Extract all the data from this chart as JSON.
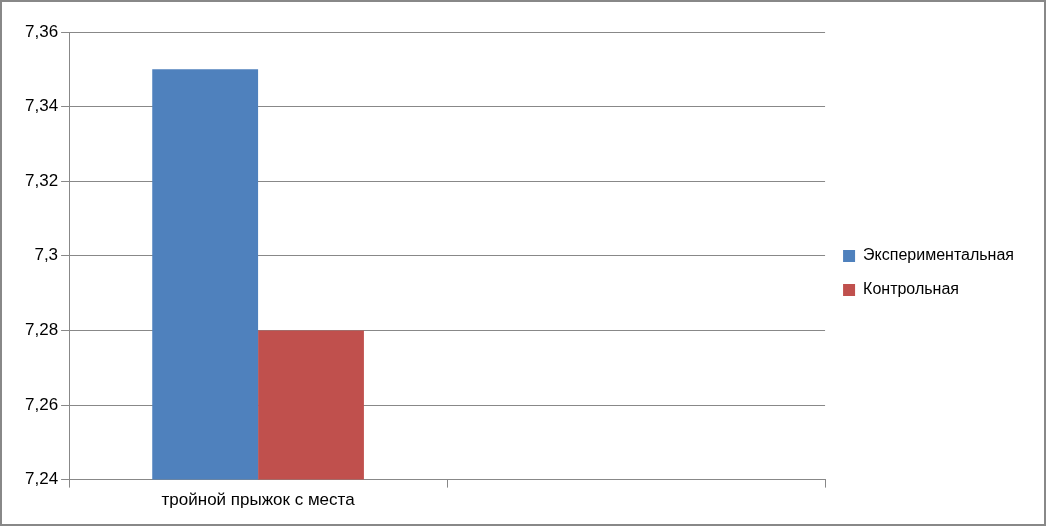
{
  "chart_data": {
    "type": "bar",
    "categories": [
      "тройной прыжок с места",
      null
    ],
    "series": [
      {
        "name": "Экспериментальная",
        "color": "#4f81bd",
        "values": [
          7.35,
          null
        ]
      },
      {
        "name": "Контрольная",
        "color": "#c0504d",
        "values": [
          7.28,
          null
        ]
      }
    ],
    "ylim": [
      7.24,
      7.36
    ],
    "yticks": [
      {
        "value": 7.24,
        "label": "7,24"
      },
      {
        "value": 7.26,
        "label": "7,26"
      },
      {
        "value": 7.28,
        "label": "7,28"
      },
      {
        "value": 7.3,
        "label": "7,3"
      },
      {
        "value": 7.32,
        "label": "7,32"
      },
      {
        "value": 7.34,
        "label": "7,34"
      },
      {
        "value": 7.36,
        "label": "7,36"
      }
    ],
    "grid": "y",
    "legend": "right"
  }
}
